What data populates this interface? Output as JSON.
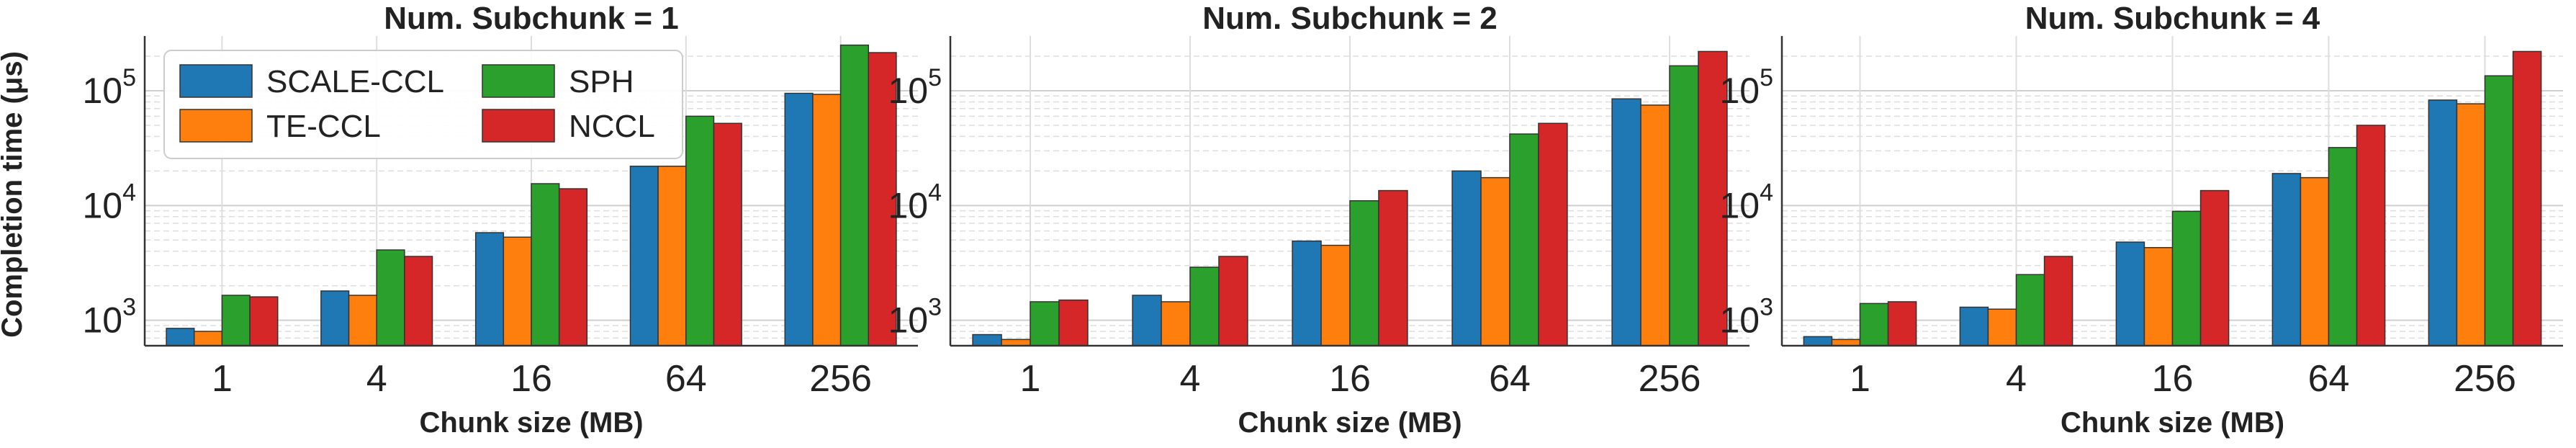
{
  "figure": {
    "ylabel": "Completion time (μs)",
    "xlabel": "Chunk size (MB)"
  },
  "legend": {
    "placement": "top-left of first panel",
    "entries": [
      {
        "name": "SCALE-CCL",
        "color": "#1f77b4"
      },
      {
        "name": "TE-CCL",
        "color": "#ff7f0e"
      },
      {
        "name": "SPH",
        "color": "#2ca02c"
      },
      {
        "name": "NCCL",
        "color": "#d62728"
      }
    ]
  },
  "chart_data": [
    {
      "type": "bar",
      "title": "Num. Subchunk = 1",
      "xlabel": "Chunk size (MB)",
      "ylabel": "Completion time (μs)",
      "yscale": "log",
      "ylim": [
        600,
        300000
      ],
      "yticks": [
        {
          "base": "10",
          "exp": "3"
        },
        {
          "base": "10",
          "exp": "4"
        },
        {
          "base": "10",
          "exp": "5"
        }
      ],
      "grid": true,
      "categories": [
        "1",
        "4",
        "16",
        "64",
        "256"
      ],
      "series": [
        {
          "name": "SCALE-CCL",
          "color": "#1f77b4",
          "values": [
            850,
            1800,
            5800,
            22000,
            95000
          ]
        },
        {
          "name": "TE-CCL",
          "color": "#ff7f0e",
          "values": [
            800,
            1650,
            5300,
            22000,
            93000
          ]
        },
        {
          "name": "SPH",
          "color": "#2ca02c",
          "values": [
            1650,
            4100,
            15500,
            60000,
            250000
          ]
        },
        {
          "name": "NCCL",
          "color": "#d62728",
          "values": [
            1600,
            3600,
            14000,
            52000,
            215000
          ]
        }
      ]
    },
    {
      "type": "bar",
      "title": "Num. Subchunk = 2",
      "xlabel": "Chunk size (MB)",
      "ylabel": "",
      "yscale": "log",
      "ylim": [
        600,
        300000
      ],
      "yticks": [
        {
          "base": "10",
          "exp": "3"
        },
        {
          "base": "10",
          "exp": "4"
        },
        {
          "base": "10",
          "exp": "5"
        }
      ],
      "grid": true,
      "categories": [
        "1",
        "4",
        "16",
        "64",
        "256"
      ],
      "series": [
        {
          "name": "SCALE-CCL",
          "color": "#1f77b4",
          "values": [
            750,
            1650,
            4900,
            20000,
            85000
          ]
        },
        {
          "name": "TE-CCL",
          "color": "#ff7f0e",
          "values": [
            680,
            1450,
            4500,
            17500,
            75000
          ]
        },
        {
          "name": "SPH",
          "color": "#2ca02c",
          "values": [
            1450,
            2900,
            11000,
            42000,
            165000
          ]
        },
        {
          "name": "NCCL",
          "color": "#d62728",
          "values": [
            1500,
            3600,
            13500,
            52000,
            220000
          ]
        }
      ]
    },
    {
      "type": "bar",
      "title": "Num. Subchunk = 4",
      "xlabel": "Chunk size (MB)",
      "ylabel": "",
      "yscale": "log",
      "ylim": [
        600,
        300000
      ],
      "yticks": [
        {
          "base": "10",
          "exp": "3"
        },
        {
          "base": "10",
          "exp": "4"
        },
        {
          "base": "10",
          "exp": "5"
        }
      ],
      "grid": true,
      "categories": [
        "1",
        "4",
        "16",
        "64",
        "256"
      ],
      "series": [
        {
          "name": "SCALE-CCL",
          "color": "#1f77b4",
          "values": [
            720,
            1300,
            4800,
            19000,
            83000
          ]
        },
        {
          "name": "TE-CCL",
          "color": "#ff7f0e",
          "values": [
            680,
            1250,
            4300,
            17500,
            77000
          ]
        },
        {
          "name": "SPH",
          "color": "#2ca02c",
          "values": [
            1400,
            2500,
            8900,
            32000,
            135000
          ]
        },
        {
          "name": "NCCL",
          "color": "#d62728",
          "values": [
            1450,
            3600,
            13500,
            50000,
            220000
          ]
        }
      ]
    }
  ]
}
